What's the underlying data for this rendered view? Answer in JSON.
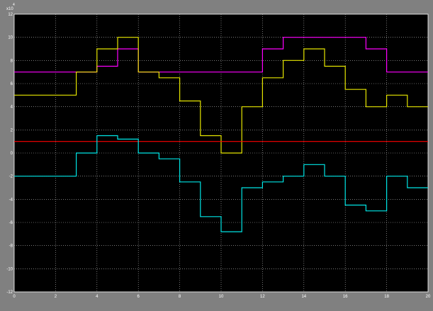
{
  "window": {
    "background": "#000000",
    "frame": "#808080",
    "axes_color": "#ffffff",
    "grid_color": "#bfbfbf"
  },
  "chart_data": {
    "type": "line",
    "title": "",
    "xlabel": "",
    "ylabel": "",
    "y_exponent_label": "x10",
    "y_exponent_power": "4",
    "xlim": [
      0,
      20
    ],
    "ylim": [
      -120000,
      120000
    ],
    "grid": true,
    "legend": "none",
    "x_ticks": [
      0,
      2,
      4,
      6,
      8,
      10,
      12,
      14,
      16,
      18,
      20
    ],
    "x_tick_labels": [
      "0",
      "2",
      "4",
      "6",
      "8",
      "10",
      "12",
      "14",
      "16",
      "18",
      "20"
    ],
    "y_ticks": [
      -120000,
      -100000,
      -80000,
      -60000,
      -40000,
      -20000,
      0,
      20000,
      40000,
      60000,
      80000,
      100000,
      120000
    ],
    "y_tick_labels": [
      "-12",
      "-10",
      "-8",
      "-6",
      "-4",
      "-2",
      "0",
      "2",
      "4",
      "6",
      "8",
      "10",
      "12"
    ],
    "series": [
      {
        "color": "#ff00ff",
        "x": [
          0,
          4,
          5,
          6,
          12,
          13,
          17,
          18,
          20
        ],
        "y": [
          70000,
          75000,
          90000,
          70000,
          90000,
          100000,
          90000,
          70000,
          70000
        ]
      },
      {
        "color": "#e6e600",
        "x": [
          0,
          3,
          4,
          5,
          6,
          7,
          8,
          9,
          10,
          11,
          12,
          13,
          14,
          15,
          16,
          17,
          18,
          19,
          20
        ],
        "y": [
          50000,
          70000,
          90000,
          100000,
          70000,
          65000,
          45000,
          15000,
          0,
          40000,
          65000,
          80000,
          90000,
          75000,
          55000,
          40000,
          50000,
          40000,
          40000
        ]
      },
      {
        "color": "#ff0000",
        "x": [
          0,
          20
        ],
        "y": [
          10000,
          10000
        ]
      },
      {
        "color": "#00e6e6",
        "x": [
          0,
          3,
          4,
          5,
          6,
          7,
          8,
          9,
          10,
          11,
          12,
          13,
          14,
          15,
          16,
          17,
          18,
          19,
          20
        ],
        "y": [
          -20000,
          0,
          15000,
          12000,
          0,
          -5000,
          -25000,
          -55000,
          -68000,
          -30000,
          -25000,
          -20000,
          -10000,
          -20000,
          -45000,
          -50000,
          -20000,
          -30000,
          -30000
        ]
      }
    ]
  }
}
